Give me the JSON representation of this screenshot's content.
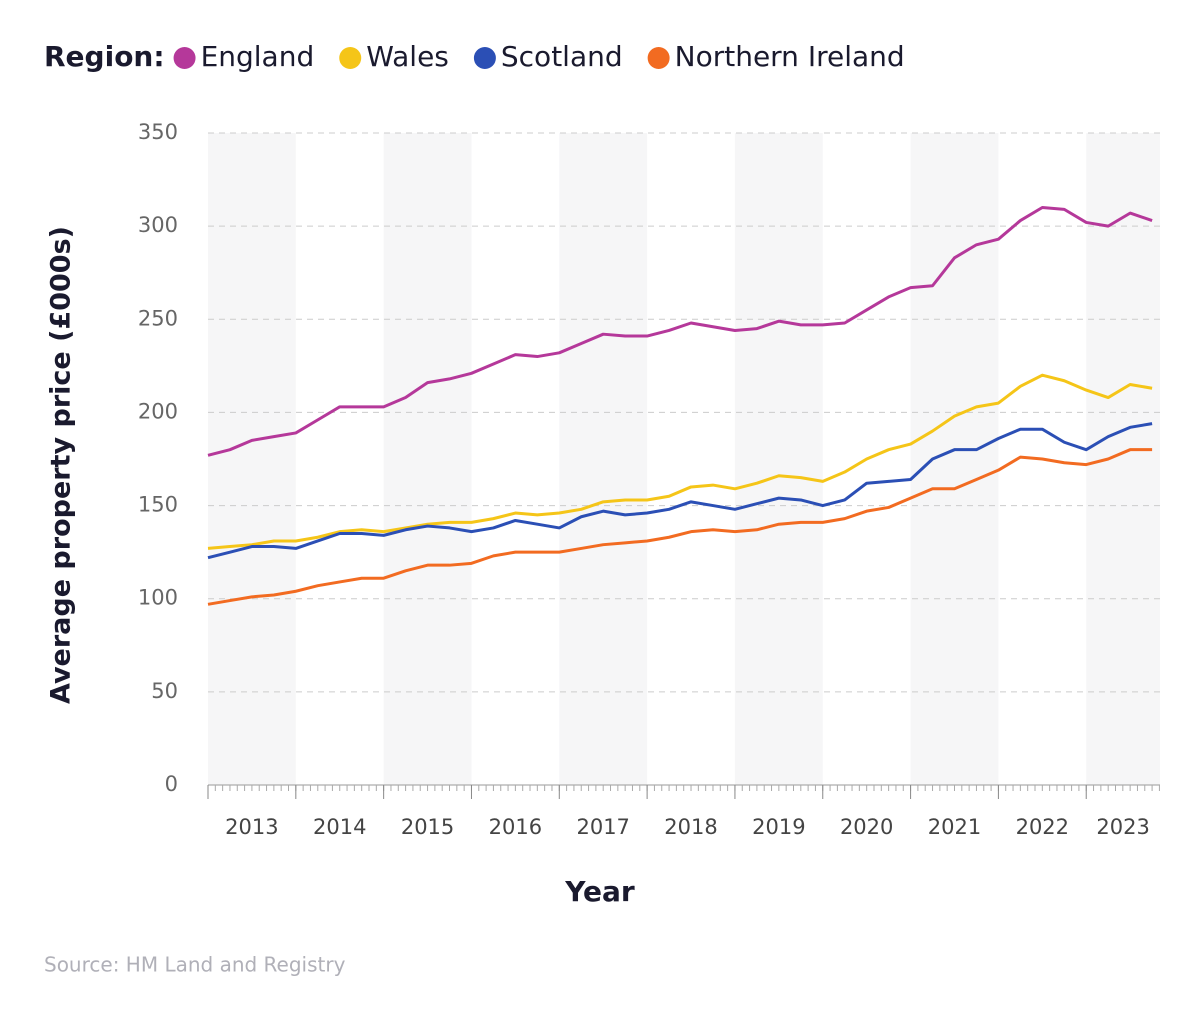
{
  "chart_data": {
    "type": "line",
    "legend_title": "Region:",
    "x_label": "Year",
    "y_label": "Average property price (£000s)",
    "source": "Source: HM Land and Registry",
    "x": [
      2013,
      2013.25,
      2013.5,
      2013.75,
      2014,
      2014.25,
      2014.5,
      2014.75,
      2015,
      2015.25,
      2015.5,
      2015.75,
      2016,
      2016.25,
      2016.5,
      2016.75,
      2017,
      2017.25,
      2017.5,
      2017.75,
      2018,
      2018.25,
      2018.5,
      2018.75,
      2019,
      2019.25,
      2019.5,
      2019.75,
      2020,
      2020.25,
      2020.5,
      2020.75,
      2021,
      2021.25,
      2021.5,
      2021.75,
      2022,
      2022.25,
      2022.5,
      2022.75,
      2023,
      2023.25,
      2023.5,
      2023.75
    ],
    "xlim": [
      2013,
      2023.84
    ],
    "xticks": [
      2013,
      2014,
      2015,
      2016,
      2017,
      2018,
      2019,
      2020,
      2021,
      2022,
      2023
    ],
    "ylim": [
      0,
      350
    ],
    "yticks": [
      0,
      50,
      100,
      150,
      200,
      250,
      300,
      350
    ],
    "grid": true,
    "series": [
      {
        "name": "England",
        "color": "#b5389a",
        "values": [
          177,
          180,
          185,
          187,
          189,
          196,
          203,
          203,
          203,
          208,
          216,
          218,
          221,
          226,
          231,
          230,
          232,
          237,
          242,
          241,
          241,
          244,
          248,
          246,
          244,
          245,
          249,
          247,
          247,
          248,
          255,
          262,
          267,
          268,
          283,
          290,
          293,
          303,
          310,
          309,
          302,
          300,
          307,
          303
        ]
      },
      {
        "name": "Wales",
        "color": "#f5c518",
        "values": [
          127,
          128,
          129,
          131,
          131,
          133,
          136,
          137,
          136,
          138,
          140,
          141,
          141,
          143,
          146,
          145,
          146,
          148,
          152,
          153,
          153,
          155,
          160,
          161,
          159,
          162,
          166,
          165,
          163,
          168,
          175,
          180,
          183,
          190,
          198,
          203,
          205,
          214,
          220,
          217,
          212,
          208,
          215,
          213
        ]
      },
      {
        "name": "Scotland",
        "color": "#2b4fb5",
        "values": [
          122,
          125,
          128,
          128,
          127,
          131,
          135,
          135,
          134,
          137,
          139,
          138,
          136,
          138,
          142,
          140,
          138,
          144,
          147,
          145,
          146,
          148,
          152,
          150,
          148,
          151,
          154,
          153,
          150,
          153,
          162,
          163,
          164,
          175,
          180,
          180,
          186,
          191,
          191,
          184,
          180,
          187,
          192,
          194
        ]
      },
      {
        "name": "Northern Ireland",
        "color": "#f26b21",
        "values": [
          97,
          99,
          101,
          102,
          104,
          107,
          109,
          111,
          111,
          115,
          118,
          118,
          119,
          123,
          125,
          125,
          125,
          127,
          129,
          130,
          131,
          133,
          136,
          137,
          136,
          137,
          140,
          141,
          141,
          143,
          147,
          149,
          154,
          159,
          159,
          164,
          169,
          176,
          175,
          173,
          172,
          175,
          180,
          180
        ]
      }
    ]
  }
}
